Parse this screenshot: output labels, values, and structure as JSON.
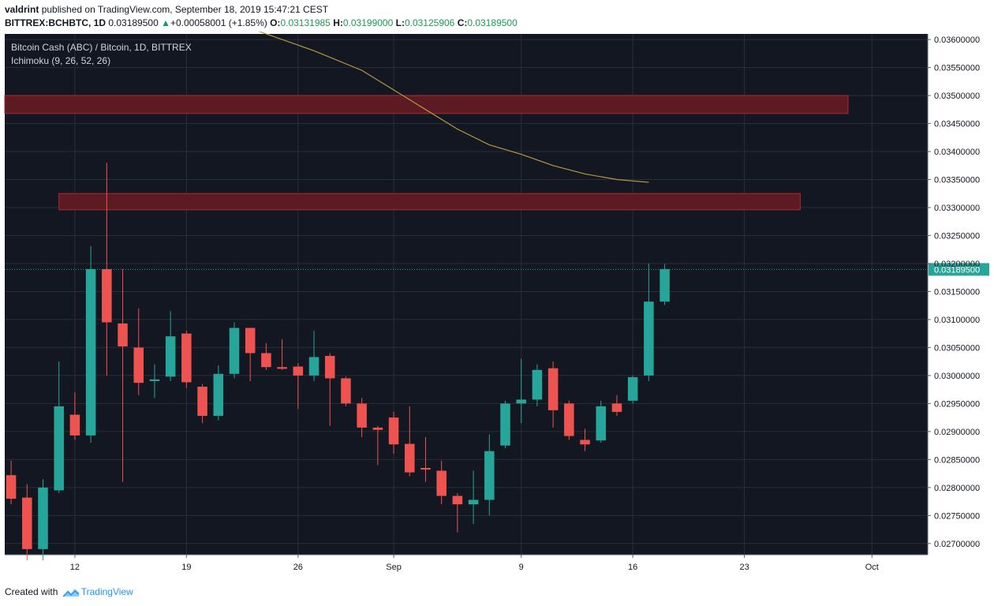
{
  "header": {
    "author": "valdrint",
    "published_text": "published on TradingView.com, September 18, 2019 15:47:21 CEST",
    "symbol": "BITTREX:BCHBTC, 1D",
    "last": "0.03189500",
    "change": "+0.00058001 (+1.85%)",
    "open_label": "O:",
    "open": "0.03131985",
    "high_label": "H:",
    "high": "0.03199000",
    "low_label": "L:",
    "low": "0.03125906",
    "close_label": "C:",
    "close": "0.03189500"
  },
  "legend": {
    "title": "Bitcoin Cash (ABC) / Bitcoin, 1D, BITTREX",
    "indicator": "Ichimoku (9, 26, 52, 26)"
  },
  "footer": {
    "created_with": "Created with",
    "brand": "TradingView"
  },
  "colors": {
    "background": "#131722",
    "grid": "#2a2e39",
    "up": "#26a69a",
    "down": "#ef5350",
    "zone_fill": "#5c1a22",
    "zone_stroke": "#b22833",
    "ma_line": "#b39a3e",
    "price_line": "#26a69a"
  },
  "chart_data": {
    "type": "candlestick",
    "title": "Bitcoin Cash (ABC) / Bitcoin, 1D, BITTREX",
    "ylim": [
      0.0268,
      0.0361
    ],
    "y_ticks": [
      "0.03600000",
      "0.03550000",
      "0.03500000",
      "0.03450000",
      "0.03400000",
      "0.03350000",
      "0.03300000",
      "0.03250000",
      "0.03200000",
      "0.03150000",
      "0.03100000",
      "0.03050000",
      "0.03000000",
      "0.02950000",
      "0.02900000",
      "0.02850000",
      "0.02800000",
      "0.02750000",
      "0.02700000"
    ],
    "x_ticks": [
      {
        "label": "12",
        "day": 12
      },
      {
        "label": "19",
        "day": 19
      },
      {
        "label": "26",
        "day": 26
      },
      {
        "label": "Sep",
        "day": 32
      },
      {
        "label": "9",
        "day": 40
      },
      {
        "label": "16",
        "day": 47
      },
      {
        "label": "23",
        "day": 54
      },
      {
        "label": "Oct",
        "day": 62
      }
    ],
    "x_range_days": [
      7.6,
      65.5
    ],
    "last_price": 0.031895,
    "last_price_label": "0.03189500",
    "resistance_zones": [
      {
        "from_day": 7.6,
        "to_day": 60.5,
        "low": 0.03468,
        "high": 0.035
      },
      {
        "from_day": 11.0,
        "to_day": 57.5,
        "low": 0.03296,
        "high": 0.03325
      }
    ],
    "ichimoku_line": [
      {
        "day": 23.5,
        "value": 0.03615
      },
      {
        "day": 27,
        "value": 0.0358
      },
      {
        "day": 30,
        "value": 0.03545
      },
      {
        "day": 32,
        "value": 0.0351
      },
      {
        "day": 34,
        "value": 0.03475
      },
      {
        "day": 36,
        "value": 0.0344
      },
      {
        "day": 38,
        "value": 0.03412
      },
      {
        "day": 40,
        "value": 0.03395
      },
      {
        "day": 42,
        "value": 0.03375
      },
      {
        "day": 44,
        "value": 0.0336
      },
      {
        "day": 46,
        "value": 0.0335
      },
      {
        "day": 48,
        "value": 0.03345
      }
    ],
    "candles": [
      {
        "day": 8,
        "open": 0.02822,
        "high": 0.02848,
        "low": 0.0277,
        "close": 0.0278
      },
      {
        "day": 9,
        "open": 0.02782,
        "high": 0.02806,
        "low": 0.0267,
        "close": 0.0269
      },
      {
        "day": 10,
        "open": 0.0269,
        "high": 0.02815,
        "low": 0.0267,
        "close": 0.028
      },
      {
        "day": 11,
        "open": 0.02795,
        "high": 0.03025,
        "low": 0.0279,
        "close": 0.02945
      },
      {
        "day": 12,
        "open": 0.0293,
        "high": 0.0297,
        "low": 0.02885,
        "close": 0.02893
      },
      {
        "day": 13,
        "open": 0.02893,
        "high": 0.03231,
        "low": 0.0288,
        "close": 0.0319
      },
      {
        "day": 14,
        "open": 0.0319,
        "high": 0.0338,
        "low": 0.03,
        "close": 0.03095
      },
      {
        "day": 15,
        "open": 0.03093,
        "high": 0.0319,
        "low": 0.0281,
        "close": 0.03052
      },
      {
        "day": 16,
        "open": 0.0305,
        "high": 0.0312,
        "low": 0.02965,
        "close": 0.02987
      },
      {
        "day": 17,
        "open": 0.0299,
        "high": 0.0302,
        "low": 0.0296,
        "close": 0.02993
      },
      {
        "day": 18,
        "open": 0.02998,
        "high": 0.03115,
        "low": 0.0299,
        "close": 0.0307
      },
      {
        "day": 19,
        "open": 0.03075,
        "high": 0.0308,
        "low": 0.02978,
        "close": 0.02988
      },
      {
        "day": 20,
        "open": 0.0298,
        "high": 0.02985,
        "low": 0.02915,
        "close": 0.02928
      },
      {
        "day": 21,
        "open": 0.02928,
        "high": 0.03018,
        "low": 0.0292,
        "close": 0.03003
      },
      {
        "day": 22,
        "open": 0.03003,
        "high": 0.03095,
        "low": 0.02995,
        "close": 0.03085
      },
      {
        "day": 23,
        "open": 0.03085,
        "high": 0.03085,
        "low": 0.0299,
        "close": 0.0304
      },
      {
        "day": 24,
        "open": 0.0304,
        "high": 0.03058,
        "low": 0.0301,
        "close": 0.03015
      },
      {
        "day": 25,
        "open": 0.03015,
        "high": 0.03065,
        "low": 0.0301,
        "close": 0.03012
      },
      {
        "day": 26,
        "open": 0.03016,
        "high": 0.03022,
        "low": 0.0294,
        "close": 0.03
      },
      {
        "day": 27,
        "open": 0.03,
        "high": 0.0308,
        "low": 0.0299,
        "close": 0.03033
      },
      {
        "day": 28,
        "open": 0.03035,
        "high": 0.0304,
        "low": 0.0291,
        "close": 0.02995
      },
      {
        "day": 29,
        "open": 0.02995,
        "high": 0.02998,
        "low": 0.02945,
        "close": 0.0295
      },
      {
        "day": 30,
        "open": 0.0295,
        "high": 0.0296,
        "low": 0.0289,
        "close": 0.02907
      },
      {
        "day": 31,
        "open": 0.02907,
        "high": 0.0291,
        "low": 0.0284,
        "close": 0.02903
      },
      {
        "day": 32,
        "open": 0.02925,
        "high": 0.02935,
        "low": 0.0286,
        "close": 0.02877
      },
      {
        "day": 33,
        "open": 0.02878,
        "high": 0.02945,
        "low": 0.0282,
        "close": 0.02827
      },
      {
        "day": 34,
        "open": 0.02835,
        "high": 0.0289,
        "low": 0.0281,
        "close": 0.02832
      },
      {
        "day": 35,
        "open": 0.0283,
        "high": 0.02848,
        "low": 0.0277,
        "close": 0.02785
      },
      {
        "day": 36,
        "open": 0.02785,
        "high": 0.0279,
        "low": 0.0272,
        "close": 0.0277
      },
      {
        "day": 37,
        "open": 0.0277,
        "high": 0.0283,
        "low": 0.02735,
        "close": 0.02778
      },
      {
        "day": 38,
        "open": 0.02778,
        "high": 0.02895,
        "low": 0.0275,
        "close": 0.02865
      },
      {
        "day": 39,
        "open": 0.02875,
        "high": 0.02955,
        "low": 0.0287,
        "close": 0.0295
      },
      {
        "day": 40,
        "open": 0.0295,
        "high": 0.0303,
        "low": 0.02915,
        "close": 0.02957
      },
      {
        "day": 41,
        "open": 0.02957,
        "high": 0.0302,
        "low": 0.02945,
        "close": 0.0301
      },
      {
        "day": 42,
        "open": 0.03013,
        "high": 0.03025,
        "low": 0.02907,
        "close": 0.02938
      },
      {
        "day": 43,
        "open": 0.0295,
        "high": 0.02955,
        "low": 0.02885,
        "close": 0.02892
      },
      {
        "day": 44,
        "open": 0.02885,
        "high": 0.02905,
        "low": 0.02865,
        "close": 0.02877
      },
      {
        "day": 45,
        "open": 0.02884,
        "high": 0.02955,
        "low": 0.0288,
        "close": 0.02945
      },
      {
        "day": 46,
        "open": 0.0295,
        "high": 0.02965,
        "low": 0.02928,
        "close": 0.02935
      },
      {
        "day": 47,
        "open": 0.02955,
        "high": 0.03,
        "low": 0.0295,
        "close": 0.02997
      },
      {
        "day": 48,
        "open": 0.03,
        "high": 0.032,
        "low": 0.0299,
        "close": 0.03132
      },
      {
        "day": 49,
        "open": 0.03132,
        "high": 0.03199,
        "low": 0.03126,
        "close": 0.0319
      }
    ]
  }
}
